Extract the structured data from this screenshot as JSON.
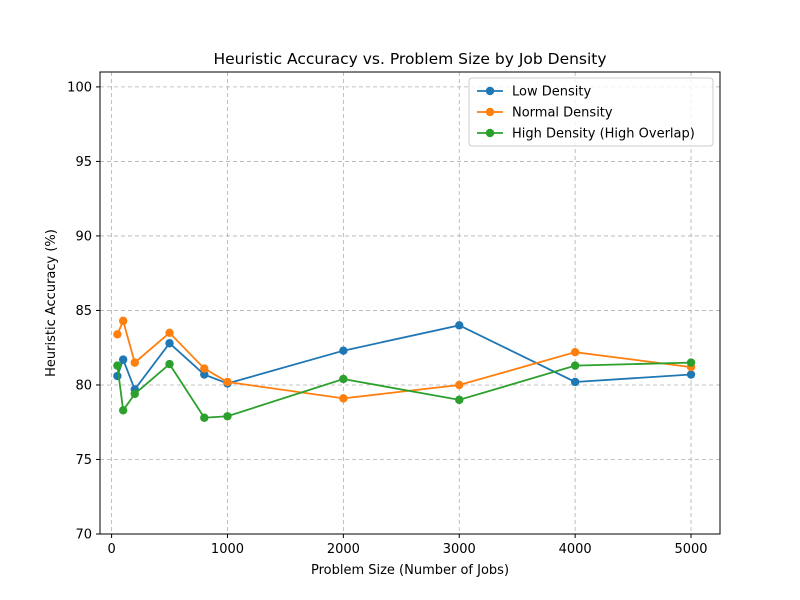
{
  "chart_data": {
    "type": "line",
    "title": "Heuristic Accuracy vs. Problem Size by Job Density",
    "xlabel": "Problem Size (Number of Jobs)",
    "ylabel": "Heuristic Accuracy (%)",
    "xlim": [
      -100,
      5250
    ],
    "ylim": [
      70,
      101
    ],
    "xticks": [
      0,
      1000,
      2000,
      3000,
      4000,
      5000
    ],
    "yticks": [
      70,
      75,
      80,
      85,
      90,
      95,
      100
    ],
    "grid": true,
    "legend_position": "top-right",
    "x": [
      50,
      100,
      200,
      500,
      800,
      1000,
      2000,
      3000,
      4000,
      5000
    ],
    "series": [
      {
        "name": "Low Density",
        "color": "#1f77b4",
        "values": [
          80.6,
          81.7,
          79.7,
          82.8,
          80.7,
          80.1,
          82.3,
          84.0,
          80.2,
          80.7
        ]
      },
      {
        "name": "Normal Density",
        "color": "#ff7f0e",
        "values": [
          83.4,
          84.3,
          81.5,
          83.5,
          81.1,
          80.2,
          79.1,
          80.0,
          82.2,
          81.2
        ]
      },
      {
        "name": "High Density (High Overlap)",
        "color": "#2ca02c",
        "values": [
          81.3,
          78.3,
          79.4,
          81.4,
          77.8,
          77.9,
          80.4,
          79.0,
          81.3,
          81.5
        ]
      }
    ]
  }
}
